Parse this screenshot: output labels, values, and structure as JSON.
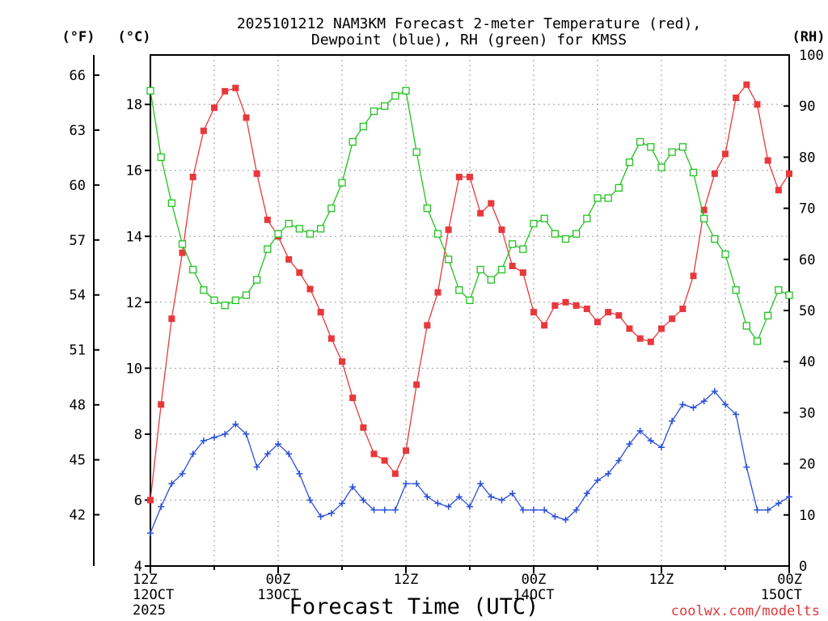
{
  "chart_data": {
    "type": "line",
    "title_line1": "2025101212 NAM3KM Forecast 2-meter Temperature (red),",
    "title_line2": "Dewpoint (blue), RH (green) for KMSS",
    "xlabel": "Forecast Time (UTC)",
    "credit": "coolwx.com/modelts",
    "left_unit_f": "(°F)",
    "left_unit_c": "(°C)",
    "right_unit": "(RH)",
    "x_range": [
      0,
      60
    ],
    "celsius_range": [
      4,
      19.5
    ],
    "rh_range": [
      0,
      100
    ],
    "celsius_ticks": [
      4,
      6,
      8,
      10,
      12,
      14,
      16,
      18
    ],
    "celsius_tick_labels": [
      "4",
      "6",
      "8",
      "10",
      "12",
      "14",
      "16",
      "18"
    ],
    "fahrenheit_ticks": [
      42,
      45,
      48,
      51,
      54,
      57,
      60,
      63,
      66
    ],
    "fahrenheit_tick_labels": [
      "42",
      "45",
      "48",
      "51",
      "54",
      "57",
      "60",
      "63",
      "66"
    ],
    "rh_ticks": [
      0,
      10,
      20,
      30,
      40,
      50,
      60,
      70,
      80,
      90,
      100
    ],
    "rh_tick_labels": [
      "0",
      "10",
      "20",
      "30",
      "40",
      "50",
      "60",
      "70",
      "80",
      "90",
      "100"
    ],
    "x_ticks": [
      {
        "hour": 0,
        "label": "12Z",
        "date": "12OCT",
        "year": "2025"
      },
      {
        "hour": 12,
        "label": "00Z",
        "date": "13OCT",
        "year": ""
      },
      {
        "hour": 24,
        "label": "12Z",
        "date": "",
        "year": ""
      },
      {
        "hour": 36,
        "label": "00Z",
        "date": "14OCT",
        "year": ""
      },
      {
        "hour": 48,
        "label": "12Z",
        "date": "",
        "year": ""
      },
      {
        "hour": 60,
        "label": "00Z",
        "date": "15OCT",
        "year": ""
      }
    ],
    "series": [
      {
        "name": "2-meter Temperature",
        "axis": "celsius",
        "color": "#e8383c",
        "marker": "filled-square",
        "values": [
          6.0,
          8.9,
          11.5,
          13.5,
          15.8,
          17.2,
          17.9,
          18.4,
          18.5,
          17.6,
          15.9,
          14.5,
          14.0,
          13.3,
          12.9,
          12.4,
          11.7,
          10.9,
          10.2,
          9.1,
          8.2,
          7.4,
          7.2,
          6.8,
          7.5,
          9.5,
          11.3,
          12.3,
          14.2,
          15.8,
          15.8,
          14.7,
          15.0,
          14.2,
          13.1,
          12.9,
          11.7,
          11.3,
          11.9,
          12.0,
          11.9,
          11.8,
          11.4,
          11.7,
          11.6,
          11.2,
          10.9,
          10.8,
          11.2,
          11.5,
          11.8,
          12.8,
          14.8,
          15.9,
          16.5,
          18.2,
          18.6,
          18.0,
          16.3,
          15.4,
          15.9
        ]
      },
      {
        "name": "Dewpoint",
        "axis": "celsius",
        "color": "#2b4fd8",
        "marker": "plus",
        "values": [
          5.0,
          5.8,
          6.5,
          6.8,
          7.4,
          7.8,
          7.9,
          8.0,
          8.3,
          8.0,
          7.0,
          7.4,
          7.7,
          7.4,
          6.8,
          6.0,
          5.5,
          5.6,
          5.9,
          6.4,
          6.0,
          5.7,
          5.7,
          5.7,
          6.5,
          6.5,
          6.1,
          5.9,
          5.8,
          6.1,
          5.8,
          6.5,
          6.1,
          6.0,
          6.2,
          5.7,
          5.7,
          5.7,
          5.5,
          5.4,
          5.7,
          6.2,
          6.6,
          6.8,
          7.2,
          7.7,
          8.1,
          7.8,
          7.6,
          8.4,
          8.9,
          8.8,
          9.0,
          9.3,
          8.9,
          8.6,
          7.0,
          5.7,
          5.7,
          5.9,
          6.1
        ]
      },
      {
        "name": "RH",
        "axis": "rh",
        "color": "#22c21f",
        "marker": "open-square",
        "values": [
          93,
          80,
          71,
          63,
          58,
          54,
          52,
          51,
          52,
          53,
          56,
          62,
          65,
          67,
          66,
          65,
          66,
          70,
          75,
          83,
          86,
          89,
          90,
          92,
          93,
          81,
          70,
          65,
          60,
          54,
          52,
          58,
          56,
          58,
          63,
          62,
          67,
          68,
          65,
          64,
          65,
          68,
          72,
          72,
          74,
          79,
          83,
          82,
          78,
          81,
          82,
          77,
          68,
          64,
          61,
          54,
          47,
          44,
          49,
          54,
          53
        ]
      }
    ]
  }
}
